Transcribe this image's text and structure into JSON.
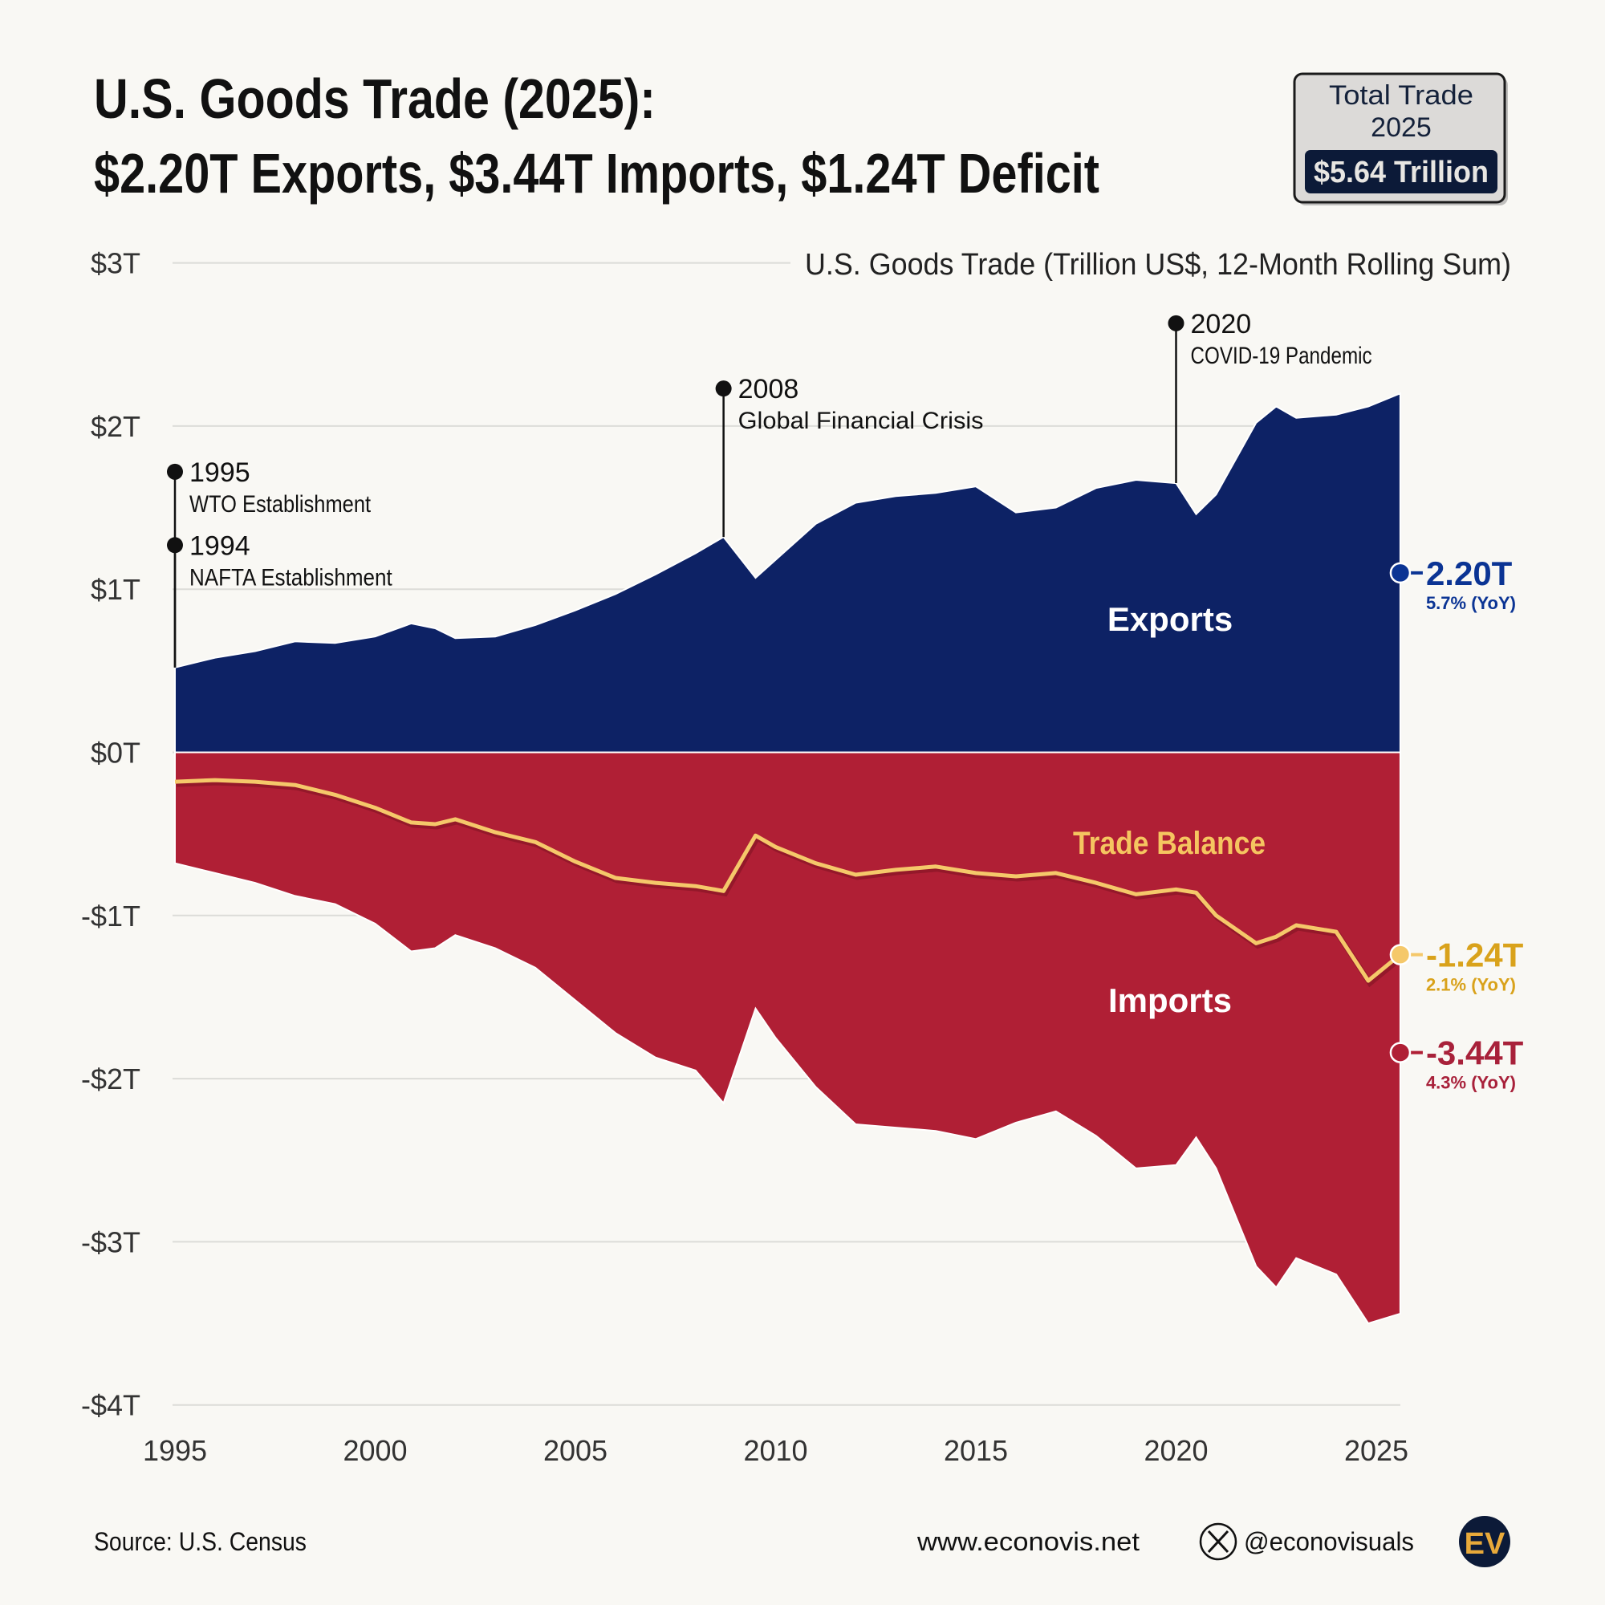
{
  "title": {
    "line1": "U.S. Goods Trade (2025):",
    "line2": "$2.20T Exports, $3.44T Imports, $1.24T Deficit"
  },
  "total_box": {
    "label1": "Total Trade",
    "label2": "2025",
    "value": "$5.64 Trillion"
  },
  "footer": {
    "source": "Source: U.S. Census",
    "website": "www.econovis.net",
    "handle": "@econovisuals",
    "logo": "EV"
  },
  "colors": {
    "exports": "#0d2265",
    "exports_text": "#0b3494",
    "imports": "#b01f35",
    "imports_text": "#a8213a",
    "balance": "#f5c86a",
    "balance_text": "#d9a21b",
    "background": "#f9f8f4"
  },
  "chart_data": {
    "type": "area",
    "title": "U.S. Goods Trade (Trillion US$, 12-Month Rolling Sum)",
    "xlabel": "",
    "ylabel": "",
    "xlim": [
      1995,
      2025.6
    ],
    "ylim": [
      -4,
      3
    ],
    "grid": true,
    "x_ticks": [
      "1995",
      "2000",
      "2005",
      "2010",
      "2015",
      "2020",
      "2025"
    ],
    "y_ticks": [
      {
        "v": 3,
        "label": "$3T"
      },
      {
        "v": 2,
        "label": "$2T"
      },
      {
        "v": 1,
        "label": "$1T"
      },
      {
        "v": 0,
        "label": "$0T"
      },
      {
        "v": -1,
        "label": "-$1T"
      },
      {
        "v": -2,
        "label": "-$2T"
      },
      {
        "v": -3,
        "label": "-$3T"
      },
      {
        "v": -4,
        "label": "-$4T"
      }
    ],
    "x": [
      1995,
      1996,
      1997,
      1998,
      1999,
      2000,
      2000.9,
      2001.5,
      2002,
      2003,
      2004,
      2005,
      2006,
      2007,
      2008,
      2008.7,
      2009.5,
      2010,
      2011,
      2012,
      2013,
      2014,
      2015,
      2016,
      2017,
      2018,
      2019,
      2020,
      2020.5,
      2021,
      2022,
      2022.5,
      2023,
      2024,
      2024.8,
      2025.6
    ],
    "series": [
      {
        "name": "Exports",
        "label": "Exports",
        "end_value": "2.20T",
        "yoy": "5.7% (YoY)",
        "values": [
          0.52,
          0.58,
          0.62,
          0.68,
          0.67,
          0.71,
          0.79,
          0.76,
          0.7,
          0.71,
          0.78,
          0.87,
          0.97,
          1.09,
          1.22,
          1.32,
          1.07,
          1.18,
          1.4,
          1.53,
          1.57,
          1.59,
          1.63,
          1.47,
          1.5,
          1.62,
          1.67,
          1.65,
          1.46,
          1.58,
          2.02,
          2.12,
          2.05,
          2.07,
          2.12,
          2.2
        ]
      },
      {
        "name": "Imports",
        "label": "Imports",
        "end_value": "-3.44T",
        "yoy": "4.3% (YoY)",
        "values": [
          -0.68,
          -0.74,
          -0.8,
          -0.88,
          -0.93,
          -1.05,
          -1.22,
          -1.2,
          -1.12,
          -1.2,
          -1.32,
          -1.52,
          -1.72,
          -1.87,
          -1.95,
          -2.15,
          -1.57,
          -1.75,
          -2.05,
          -2.28,
          -2.3,
          -2.32,
          -2.37,
          -2.27,
          -2.2,
          -2.35,
          -2.55,
          -2.53,
          -2.36,
          -2.55,
          -3.15,
          -3.28,
          -3.1,
          -3.2,
          -3.5,
          -3.44
        ]
      },
      {
        "name": "Trade Balance",
        "label": "Trade Balance",
        "end_value": "-1.24T",
        "yoy": "2.1% (YoY)",
        "values": [
          -0.18,
          -0.17,
          -0.18,
          -0.2,
          -0.26,
          -0.34,
          -0.43,
          -0.44,
          -0.41,
          -0.49,
          -0.55,
          -0.67,
          -0.77,
          -0.8,
          -0.82,
          -0.85,
          -0.51,
          -0.58,
          -0.68,
          -0.75,
          -0.72,
          -0.7,
          -0.74,
          -0.76,
          -0.74,
          -0.8,
          -0.87,
          -0.84,
          -0.86,
          -1.0,
          -1.17,
          -1.13,
          -1.06,
          -1.1,
          -1.4,
          -1.24
        ]
      }
    ],
    "annotations": [
      {
        "year": "1995",
        "text": "WTO Establishment",
        "x": 1995,
        "y": 1.72
      },
      {
        "year": "1994",
        "text": "NAFTA Establishment",
        "x": 1995,
        "y": 1.27
      },
      {
        "year": "2008",
        "text": "Global Financial Crisis",
        "x": 2008.7,
        "y": 2.23
      },
      {
        "year": "2020",
        "text": "COVID-19 Pandemic",
        "x": 2020,
        "y": 2.63
      }
    ]
  }
}
